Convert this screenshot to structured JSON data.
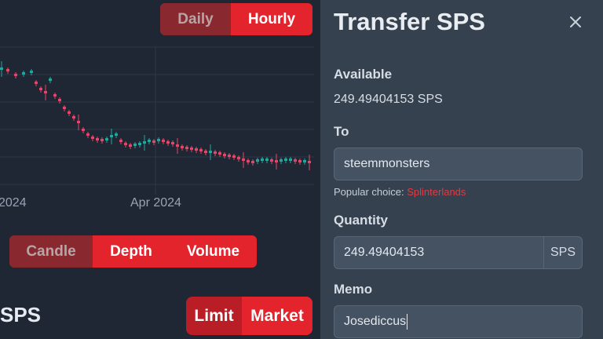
{
  "timeframe": {
    "options": [
      "Daily",
      "Hourly"
    ],
    "selected": "Hourly"
  },
  "chart": {
    "x_tick_labels": [
      "2024",
      "Apr 2024"
    ],
    "colors": {
      "up": "#26a69a",
      "down": "#e0486a",
      "grid": "#2d3745"
    }
  },
  "chart_type": {
    "options": [
      "Candle",
      "Depth",
      "Volume"
    ],
    "dimmed": "Candle"
  },
  "order_title": "SPS",
  "order_type": {
    "options": [
      "Limit",
      "Market"
    ]
  },
  "transfer": {
    "title": "Transfer SPS",
    "available_label": "Available",
    "available_value": "249.49404153 SPS",
    "to_label": "To",
    "to_value": "steemmonsters",
    "popular_prefix": "Popular choice:",
    "popular_link": "Splinterlands",
    "quantity_label": "Quantity",
    "quantity_value": "249.49404153",
    "quantity_unit": "SPS",
    "memo_label": "Memo",
    "memo_value": "Josediccus"
  }
}
